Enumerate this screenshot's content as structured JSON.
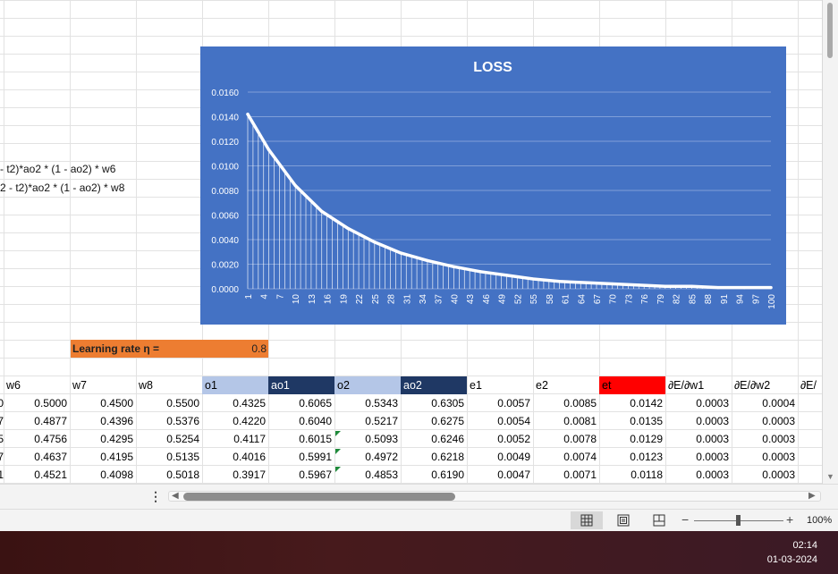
{
  "formulas": [
    "- t2)*ao2 * (1 - ao2) * w6",
    "2 - t2)*ao2 * (1 - ao2) * w8"
  ],
  "learning_rate": {
    "label": "Learning rate η =",
    "value": "0.8"
  },
  "table": {
    "headers": [
      "w6",
      "w7",
      "w8",
      "o1",
      "ao1",
      "o2",
      "ao2",
      "e1",
      "e2",
      "et",
      "∂E/∂w1",
      "∂E/∂w2",
      "∂E/"
    ],
    "header_fills": [
      "",
      "",
      "",
      "#b4c6e7",
      "#1f3864",
      "#b4c6e7",
      "#1f3864",
      "",
      "",
      "#ff0000",
      "",
      "",
      ""
    ],
    "header_text_colors": [
      "#000000",
      "#000000",
      "#000000",
      "#000000",
      "#ffffff",
      "#000000",
      "#ffffff",
      "#000000",
      "#000000",
      "#000000",
      "#000000",
      "#000000",
      "#000000"
    ],
    "left_clip_digits": [
      "0",
      "7",
      "5",
      "7",
      "1"
    ],
    "rows": [
      [
        "0.5000",
        "0.4500",
        "0.5500",
        "0.4325",
        "0.6065",
        "0.5343",
        "0.6305",
        "0.0057",
        "0.0085",
        "0.0142",
        "0.0003",
        "0.0004"
      ],
      [
        "0.4877",
        "0.4396",
        "0.5376",
        "0.4220",
        "0.6040",
        "0.5217",
        "0.6275",
        "0.0054",
        "0.0081",
        "0.0135",
        "0.0003",
        "0.0003"
      ],
      [
        "0.4756",
        "0.4295",
        "0.5254",
        "0.4117",
        "0.6015",
        "0.5093",
        "0.6246",
        "0.0052",
        "0.0078",
        "0.0129",
        "0.0003",
        "0.0003"
      ],
      [
        "0.4637",
        "0.4195",
        "0.5135",
        "0.4016",
        "0.5991",
        "0.4972",
        "0.6218",
        "0.0049",
        "0.0074",
        "0.0123",
        "0.0003",
        "0.0003"
      ],
      [
        "0.4521",
        "0.4098",
        "0.5018",
        "0.3917",
        "0.5967",
        "0.4853",
        "0.6190",
        "0.0047",
        "0.0071",
        "0.0118",
        "0.0003",
        "0.0003"
      ]
    ]
  },
  "chart_data": {
    "type": "line",
    "title": "LOSS",
    "background": "#4472c4",
    "line_color": "#ffffff",
    "drop_lines": true,
    "grid": true,
    "y_ticks": [
      "0.0160",
      "0.0140",
      "0.0120",
      "0.0100",
      "0.0080",
      "0.0060",
      "0.0040",
      "0.0020",
      "0.0000"
    ],
    "ylim": [
      0,
      0.016
    ],
    "x_range": [
      1,
      100
    ],
    "x_tick_labels": [
      "1",
      "4",
      "7",
      "10",
      "13",
      "16",
      "19",
      "22",
      "25",
      "28",
      "31",
      "34",
      "37",
      "40",
      "43",
      "46",
      "49",
      "52",
      "55",
      "58",
      "61",
      "64",
      "67",
      "70",
      "73",
      "76",
      "79",
      "82",
      "85",
      "88",
      "91",
      "94",
      "97",
      "100"
    ],
    "x": [
      1,
      5,
      10,
      15,
      20,
      25,
      30,
      35,
      40,
      45,
      50,
      55,
      60,
      65,
      70,
      75,
      80,
      85,
      90,
      95,
      100
    ],
    "y": [
      0.0142,
      0.0113,
      0.0084,
      0.0063,
      0.0049,
      0.0038,
      0.0029,
      0.0023,
      0.0018,
      0.0014,
      0.0011,
      0.0008,
      0.0006,
      0.0005,
      0.0004,
      0.0003,
      0.0002,
      0.0002,
      0.0001,
      0.0001,
      0.0001
    ]
  },
  "status_bar": {
    "zoom": "100%",
    "minus": "−",
    "plus": "+"
  },
  "taskbar": {
    "time": "02:14",
    "date": "01-03-2024"
  },
  "colors": {
    "learning_rate_fill": "#ed7d31",
    "flag_triangle": "#1e8a3a",
    "taskbar": "#3f1616"
  },
  "icons": {
    "more": "more-options-icon",
    "normal_view": "normal-view-icon",
    "page_layout": "page-layout-view-icon",
    "page_break": "page-break-view-icon"
  },
  "scroll_labels": {
    "more": "⋮",
    "left": "◀",
    "right": "▶",
    "down": "▼"
  }
}
